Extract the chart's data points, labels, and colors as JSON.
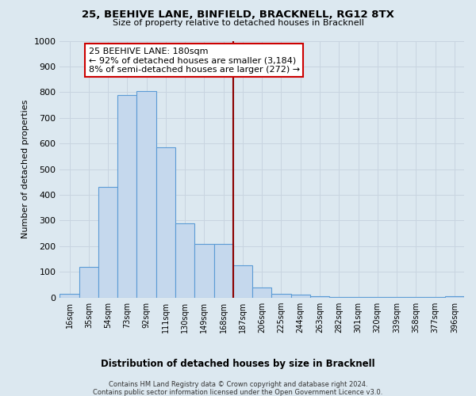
{
  "title1": "25, BEEHIVE LANE, BINFIELD, BRACKNELL, RG12 8TX",
  "title2": "Size of property relative to detached houses in Bracknell",
  "xlabel": "Distribution of detached houses by size in Bracknell",
  "ylabel": "Number of detached properties",
  "bar_labels": [
    "16sqm",
    "35sqm",
    "54sqm",
    "73sqm",
    "92sqm",
    "111sqm",
    "130sqm",
    "149sqm",
    "168sqm",
    "187sqm",
    "206sqm",
    "225sqm",
    "244sqm",
    "263sqm",
    "282sqm",
    "301sqm",
    "320sqm",
    "339sqm",
    "358sqm",
    "377sqm",
    "396sqm"
  ],
  "bar_values": [
    15,
    120,
    430,
    790,
    805,
    585,
    290,
    210,
    210,
    125,
    40,
    15,
    10,
    5,
    3,
    2,
    1,
    1,
    1,
    1,
    5
  ],
  "bar_color": "#c5d8ed",
  "bar_edge_color": "#5b9bd5",
  "vline_color": "#8b0000",
  "ylim": [
    0,
    1000
  ],
  "yticks": [
    0,
    100,
    200,
    300,
    400,
    500,
    600,
    700,
    800,
    900,
    1000
  ],
  "annotation_title": "25 BEEHIVE LANE: 180sqm",
  "annotation_line1": "← 92% of detached houses are smaller (3,184)",
  "annotation_line2": "8% of semi-detached houses are larger (272) →",
  "annotation_box_color": "#ffffff",
  "annotation_box_edge": "#cc0000",
  "footer1": "Contains HM Land Registry data © Crown copyright and database right 2024.",
  "footer2": "Contains public sector information licensed under the Open Government Licence v3.0.",
  "grid_color": "#c8d4e0",
  "bg_color": "#dce8f0"
}
